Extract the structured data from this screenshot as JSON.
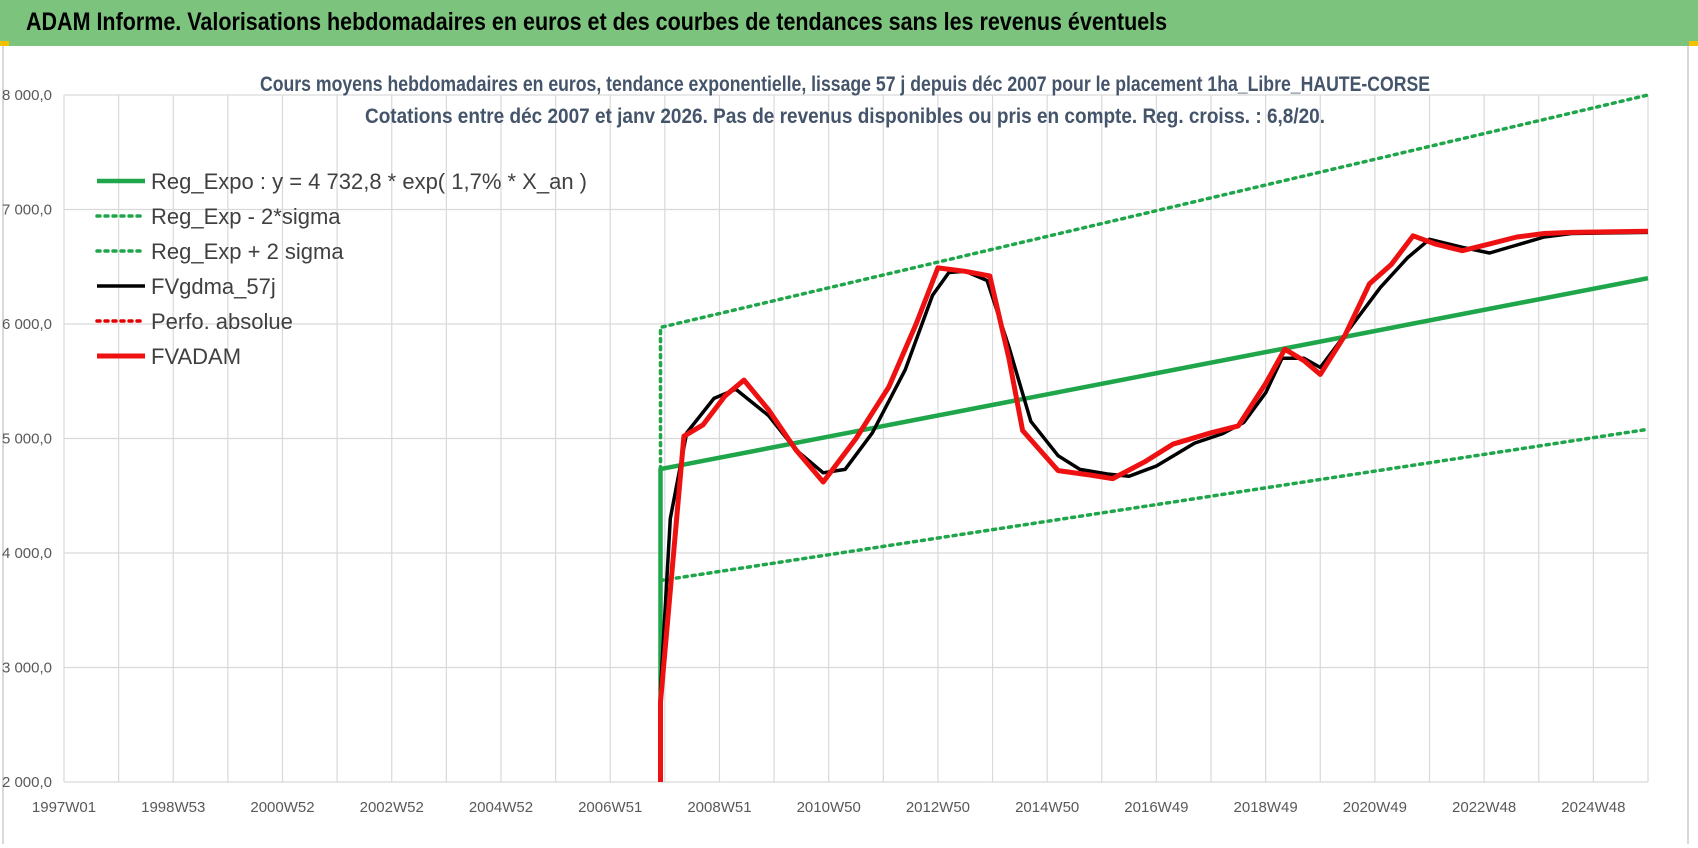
{
  "banner": {
    "title": "ADAM Informe. Valorisations hebdomadaires en euros et des courbes de tendances sans les revenus éventuels"
  },
  "colors": {
    "banner_bg": "#7cc47e",
    "reg_expo": "#1fa64a",
    "sigma_band": "#1fa64a",
    "fvgdma": "#000000",
    "perfo": "#e00000",
    "fvadam": "#ee1111",
    "grid": "#d9d9d9"
  },
  "chart_data": {
    "type": "line",
    "title_lines": [
      "Cours moyens hebdomadaires en euros, tendance exponentielle, lissage 57 j depuis déc 2007 pour le placement 1ha_Libre_HAUTE-CORSE",
      "Cotations entre déc 2007 et janv 2026.  Pas de revenus disponibles ou pris en compte. Reg. croiss. : 6,8/20."
    ],
    "xlabel": "",
    "ylabel": "",
    "ylim": [
      2000,
      8000
    ],
    "xlim": [
      1997.0,
      2026.0
    ],
    "grid": true,
    "legend_position": "top-left",
    "y_ticks": [
      {
        "value": 2000,
        "label": "2 000,0"
      },
      {
        "value": 3000,
        "label": "3 000,0"
      },
      {
        "value": 4000,
        "label": "4 000,0"
      },
      {
        "value": 5000,
        "label": "5 000,0"
      },
      {
        "value": 6000,
        "label": "6 000,0"
      },
      {
        "value": 7000,
        "label": "7 000,0"
      },
      {
        "value": 8000,
        "label": "8 000,0"
      }
    ],
    "x_ticks": [
      {
        "value": 1997.0,
        "label": "1997W01"
      },
      {
        "value": 1999.0,
        "label": "1998W53"
      },
      {
        "value": 2001.0,
        "label": "2000W52"
      },
      {
        "value": 2003.0,
        "label": "2002W52"
      },
      {
        "value": 2005.0,
        "label": "2004W52"
      },
      {
        "value": 2007.0,
        "label": "2006W51"
      },
      {
        "value": 2009.0,
        "label": "2008W51"
      },
      {
        "value": 2011.0,
        "label": "2010W50"
      },
      {
        "value": 2013.0,
        "label": "2012W50"
      },
      {
        "value": 2015.0,
        "label": "2014W50"
      },
      {
        "value": 2017.0,
        "label": "2016W49"
      },
      {
        "value": 2019.0,
        "label": "2018W49"
      },
      {
        "value": 2021.0,
        "label": "2020W49"
      },
      {
        "value": 2023.0,
        "label": "2022W48"
      },
      {
        "value": 2025.0,
        "label": "2024W48"
      }
    ],
    "series": [
      {
        "name": "Reg_Expo : y = 4 732,8 * exp( 1,7% *  X_an )",
        "style": "solid",
        "width": 4.5,
        "color": "#1fa64a",
        "points": [
          [
            2007.92,
            2000
          ],
          [
            2007.92,
            4733
          ],
          [
            2026.0,
            6400
          ]
        ]
      },
      {
        "name": "Reg_Exp - 2*sigma",
        "style": "dotted",
        "width": 3.5,
        "color": "#1fa64a",
        "points": [
          [
            2007.92,
            3760
          ],
          [
            2026.0,
            5080
          ]
        ]
      },
      {
        "name": "Reg_Exp + 2 sigma",
        "style": "dotted",
        "width": 3.5,
        "color": "#1fa64a",
        "points": [
          [
            2007.92,
            3750
          ],
          [
            2007.92,
            5970
          ],
          [
            2026.0,
            8000
          ]
        ]
      },
      {
        "name": "FVgdma_57j",
        "style": "solid",
        "width": 3.5,
        "color": "#000000",
        "points": [
          [
            2007.92,
            2800
          ],
          [
            2008.1,
            4300
          ],
          [
            2008.4,
            5050
          ],
          [
            2008.9,
            5350
          ],
          [
            2009.3,
            5430
          ],
          [
            2009.9,
            5200
          ],
          [
            2010.4,
            4900
          ],
          [
            2010.9,
            4700
          ],
          [
            2011.3,
            4730
          ],
          [
            2011.8,
            5050
          ],
          [
            2012.4,
            5600
          ],
          [
            2012.9,
            6250
          ],
          [
            2013.2,
            6450
          ],
          [
            2013.5,
            6460
          ],
          [
            2013.9,
            6380
          ],
          [
            2014.3,
            5800
          ],
          [
            2014.7,
            5150
          ],
          [
            2015.2,
            4850
          ],
          [
            2015.6,
            4730
          ],
          [
            2016.1,
            4690
          ],
          [
            2016.5,
            4670
          ],
          [
            2017.0,
            4760
          ],
          [
            2017.7,
            4960
          ],
          [
            2018.2,
            5040
          ],
          [
            2018.6,
            5140
          ],
          [
            2019.0,
            5400
          ],
          [
            2019.3,
            5700
          ],
          [
            2019.7,
            5700
          ],
          [
            2020.0,
            5620
          ],
          [
            2020.6,
            6000
          ],
          [
            2021.1,
            6320
          ],
          [
            2021.6,
            6580
          ],
          [
            2022.0,
            6740
          ],
          [
            2022.6,
            6670
          ],
          [
            2023.1,
            6620
          ],
          [
            2023.6,
            6690
          ],
          [
            2024.1,
            6760
          ],
          [
            2024.6,
            6790
          ],
          [
            2026.0,
            6800
          ]
        ]
      },
      {
        "name": "Perfo. absolue",
        "style": "dotted",
        "width": 3.5,
        "color": "#e00000",
        "points": []
      },
      {
        "name": "FVADAM",
        "style": "solid",
        "width": 5,
        "color": "#ee1111",
        "points": [
          [
            2007.92,
            2000
          ],
          [
            2007.92,
            2700
          ],
          [
            2008.35,
            5020
          ],
          [
            2008.7,
            5120
          ],
          [
            2009.1,
            5370
          ],
          [
            2009.45,
            5510
          ],
          [
            2009.9,
            5250
          ],
          [
            2010.4,
            4900
          ],
          [
            2010.9,
            4620
          ],
          [
            2011.5,
            5000
          ],
          [
            2012.1,
            5450
          ],
          [
            2012.6,
            6000
          ],
          [
            2013.0,
            6490
          ],
          [
            2013.5,
            6460
          ],
          [
            2013.95,
            6420
          ],
          [
            2014.3,
            5700
          ],
          [
            2014.55,
            5070
          ],
          [
            2015.2,
            4720
          ],
          [
            2015.8,
            4680
          ],
          [
            2016.2,
            4650
          ],
          [
            2016.8,
            4800
          ],
          [
            2017.3,
            4950
          ],
          [
            2018.0,
            5050
          ],
          [
            2018.5,
            5110
          ],
          [
            2019.0,
            5480
          ],
          [
            2019.35,
            5780
          ],
          [
            2019.7,
            5680
          ],
          [
            2020.0,
            5560
          ],
          [
            2020.45,
            5900
          ],
          [
            2020.9,
            6350
          ],
          [
            2021.3,
            6520
          ],
          [
            2021.7,
            6770
          ],
          [
            2022.1,
            6700
          ],
          [
            2022.6,
            6640
          ],
          [
            2023.1,
            6700
          ],
          [
            2023.6,
            6760
          ],
          [
            2024.1,
            6790
          ],
          [
            2024.6,
            6800
          ],
          [
            2026.0,
            6810
          ]
        ]
      }
    ]
  }
}
